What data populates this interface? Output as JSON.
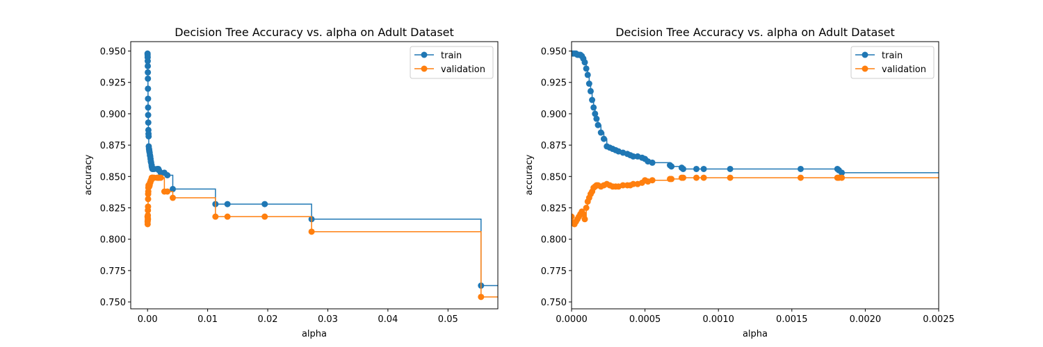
{
  "figure": {
    "background": "#ffffff"
  },
  "chart_data": [
    {
      "type": "line",
      "title": "Decision Tree Accuracy vs. alpha on Adult Dataset",
      "xlabel": "alpha",
      "ylabel": "accuracy",
      "xlim": [
        -0.0028,
        0.0583
      ],
      "ylim": [
        0.7445,
        0.9575
      ],
      "xticks": [
        0.0,
        0.01,
        0.02,
        0.03,
        0.04,
        0.05
      ],
      "xtick_labels": [
        "0.00",
        "0.01",
        "0.02",
        "0.03",
        "0.04",
        "0.05"
      ],
      "yticks": [
        0.75,
        0.775,
        0.8,
        0.825,
        0.85,
        0.875,
        0.9,
        0.925,
        0.95
      ],
      "ytick_labels": [
        "0.750",
        "0.775",
        "0.800",
        "0.825",
        "0.850",
        "0.875",
        "0.900",
        "0.925",
        "0.950"
      ],
      "legend": "top-right",
      "step": "post",
      "series": [
        {
          "name": "train",
          "color": "#1f77b4",
          "x": [
            0.0,
            1e-05,
            2e-05,
            3e-05,
            4e-05,
            5e-05,
            6e-05,
            7e-05,
            8e-05,
            9e-05,
            0.0001,
            0.00012,
            0.00014,
            0.00016,
            0.00018,
            0.0002,
            0.00024,
            0.00028,
            0.0003,
            0.00035,
            0.0004,
            0.00045,
            0.0005,
            0.00055,
            0.0006,
            0.00068,
            0.0007,
            0.00075,
            0.0008,
            0.0009,
            0.0011,
            0.0016,
            0.0018,
            0.0019,
            0.0022,
            0.0028,
            0.0033,
            0.0042,
            0.0113,
            0.0133,
            0.0195,
            0.0273,
            0.0555
          ],
          "y": [
            0.948,
            0.947,
            0.945,
            0.942,
            0.938,
            0.933,
            0.928,
            0.92,
            0.912,
            0.905,
            0.899,
            0.893,
            0.887,
            0.884,
            0.882,
            0.874,
            0.872,
            0.871,
            0.87,
            0.869,
            0.867,
            0.866,
            0.864,
            0.862,
            0.861,
            0.859,
            0.858,
            0.857,
            0.856,
            0.856,
            0.856,
            0.856,
            0.856,
            0.855,
            0.853,
            0.853,
            0.851,
            0.84,
            0.828,
            0.828,
            0.828,
            0.816,
            0.763
          ]
        },
        {
          "name": "validation",
          "color": "#ff7f0e",
          "x": [
            0.0,
            1e-05,
            2e-05,
            3e-05,
            4e-05,
            5e-05,
            6e-05,
            7e-05,
            8e-05,
            9e-05,
            0.0001,
            0.00012,
            0.00014,
            0.00016,
            0.00018,
            0.0002,
            0.00024,
            0.00028,
            0.0003,
            0.00035,
            0.0004,
            0.00045,
            0.0005,
            0.00055,
            0.0006,
            0.00068,
            0.0007,
            0.00075,
            0.0008,
            0.0009,
            0.0011,
            0.0016,
            0.0018,
            0.0019,
            0.0022,
            0.0028,
            0.0033,
            0.0042,
            0.0113,
            0.0133,
            0.0195,
            0.0273,
            0.0555
          ],
          "y": [
            0.818,
            0.814,
            0.812,
            0.815,
            0.817,
            0.819,
            0.823,
            0.816,
            0.826,
            0.832,
            0.836,
            0.838,
            0.841,
            0.843,
            0.842,
            0.843,
            0.843,
            0.842,
            0.843,
            0.843,
            0.845,
            0.845,
            0.846,
            0.847,
            0.847,
            0.848,
            0.849,
            0.849,
            0.849,
            0.849,
            0.849,
            0.849,
            0.849,
            0.849,
            0.849,
            0.838,
            0.838,
            0.833,
            0.818,
            0.818,
            0.818,
            0.806,
            0.754
          ]
        }
      ]
    },
    {
      "type": "line",
      "title": "Decision Tree Accuracy vs. alpha on Adult Dataset",
      "xlabel": "alpha",
      "ylabel": "accuracy",
      "xlim": [
        0.0,
        0.0025
      ],
      "ylim": [
        0.7445,
        0.9575
      ],
      "xticks": [
        0.0,
        0.0005,
        0.001,
        0.0015,
        0.002,
        0.0025
      ],
      "xtick_labels": [
        "0.0000",
        "0.0005",
        "0.0010",
        "0.0015",
        "0.0020",
        "0.0025"
      ],
      "yticks": [
        0.75,
        0.775,
        0.8,
        0.825,
        0.85,
        0.875,
        0.9,
        0.925,
        0.95
      ],
      "ytick_labels": [
        "0.750",
        "0.775",
        "0.800",
        "0.825",
        "0.850",
        "0.875",
        "0.900",
        "0.925",
        "0.950"
      ],
      "legend": "top-right",
      "step": "post",
      "series": [
        {
          "name": "train",
          "color": "#1f77b4",
          "x": [
            0.0,
            1e-05,
            2e-05,
            3e-05,
            4e-05,
            5e-05,
            6e-05,
            7e-05,
            8e-05,
            9e-05,
            0.0001,
            0.00011,
            0.00012,
            0.00013,
            0.00014,
            0.00015,
            0.00016,
            0.00017,
            0.00018,
            0.0002,
            0.00022,
            0.00024,
            0.00026,
            0.00028,
            0.0003,
            0.00032,
            0.00035,
            0.00038,
            0.0004,
            0.00042,
            0.00045,
            0.00048,
            0.0005,
            0.00052,
            0.00055,
            0.00067,
            0.00068,
            0.00075,
            0.00076,
            0.00085,
            0.0009,
            0.00108,
            0.00156,
            0.00181,
            0.00182,
            0.00184
          ],
          "y": [
            0.948,
            0.948,
            0.948,
            0.948,
            0.947,
            0.947,
            0.947,
            0.946,
            0.944,
            0.941,
            0.936,
            0.931,
            0.924,
            0.918,
            0.911,
            0.905,
            0.9,
            0.896,
            0.891,
            0.885,
            0.88,
            0.874,
            0.873,
            0.872,
            0.871,
            0.87,
            0.869,
            0.868,
            0.867,
            0.866,
            0.866,
            0.865,
            0.864,
            0.862,
            0.861,
            0.859,
            0.858,
            0.857,
            0.856,
            0.856,
            0.856,
            0.856,
            0.856,
            0.856,
            0.855,
            0.853
          ]
        },
        {
          "name": "validation",
          "color": "#ff7f0e",
          "x": [
            0.0,
            1e-05,
            2e-05,
            3e-05,
            4e-05,
            5e-05,
            6e-05,
            7e-05,
            8e-05,
            9e-05,
            0.0001,
            0.00011,
            0.00012,
            0.00013,
            0.00014,
            0.00015,
            0.00016,
            0.00017,
            0.00018,
            0.0002,
            0.00022,
            0.00024,
            0.00026,
            0.00028,
            0.0003,
            0.00032,
            0.00035,
            0.00038,
            0.0004,
            0.00042,
            0.00045,
            0.00048,
            0.0005,
            0.00052,
            0.00055,
            0.00067,
            0.00068,
            0.00075,
            0.00076,
            0.00085,
            0.0009,
            0.00108,
            0.00156,
            0.00181,
            0.00182,
            0.00184
          ],
          "y": [
            0.818,
            0.813,
            0.812,
            0.814,
            0.816,
            0.818,
            0.82,
            0.822,
            0.82,
            0.816,
            0.825,
            0.83,
            0.833,
            0.836,
            0.838,
            0.841,
            0.842,
            0.843,
            0.843,
            0.842,
            0.843,
            0.844,
            0.843,
            0.842,
            0.842,
            0.842,
            0.843,
            0.843,
            0.843,
            0.844,
            0.844,
            0.845,
            0.847,
            0.846,
            0.847,
            0.848,
            0.848,
            0.849,
            0.849,
            0.849,
            0.849,
            0.849,
            0.849,
            0.849,
            0.849,
            0.849
          ]
        }
      ]
    }
  ]
}
